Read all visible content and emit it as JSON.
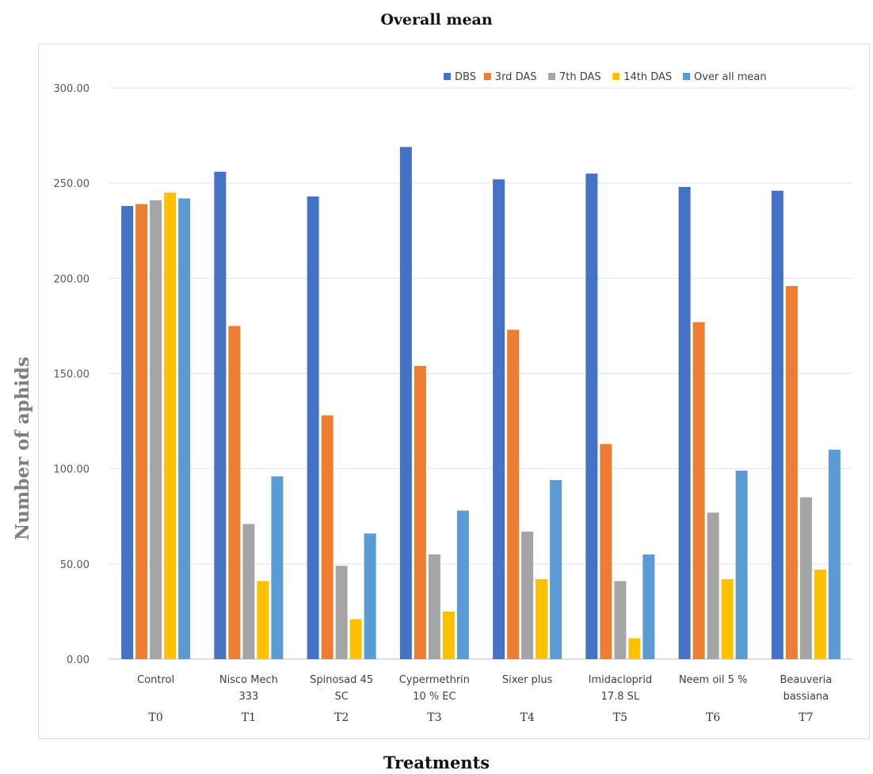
{
  "title": "Overall mean",
  "xlabel": "Treatments",
  "ylabel": "Number of aphids",
  "colors": {
    "DBS": "#4472C4",
    "3rd DAS": "#ED7D31",
    "7th DAS": "#A5A5A5",
    "14th DAS": "#FFC000",
    "Over all mean": "#5B9BD5"
  },
  "chart_data": {
    "type": "bar",
    "title": "Overall mean",
    "xlabel": "Treatments",
    "ylabel": "Number of aphids",
    "ylim": [
      0,
      300
    ],
    "yticks": [
      "0.00",
      "50.00",
      "100.00",
      "150.00",
      "200.00",
      "250.00",
      "300.00"
    ],
    "ytick_values": [
      0,
      50,
      100,
      150,
      200,
      250,
      300
    ],
    "grid": true,
    "legend": "top-right",
    "categories": [
      {
        "name": [
          "Control"
        ],
        "code": "T0"
      },
      {
        "name": [
          "Nisco Mech",
          "333"
        ],
        "code": "T1"
      },
      {
        "name": [
          "Spinosad 45",
          "SC"
        ],
        "code": "T2"
      },
      {
        "name": [
          "Cypermethrin",
          "10 % EC"
        ],
        "code": "T3"
      },
      {
        "name": [
          "Sixer plus"
        ],
        "code": "T4"
      },
      {
        "name": [
          "Imidacloprid",
          "17.8 SL"
        ],
        "code": "T5"
      },
      {
        "name": [
          "Neem oil 5 %"
        ],
        "code": "T6"
      },
      {
        "name": [
          "Beauveria",
          "bassiana"
        ],
        "code": "T7"
      }
    ],
    "series": [
      {
        "name": "DBS",
        "color": "#4472C4",
        "values": [
          238,
          256,
          243,
          269,
          252,
          255,
          248,
          246
        ]
      },
      {
        "name": "3rd DAS",
        "color": "#ED7D31",
        "values": [
          239,
          175,
          128,
          154,
          173,
          113,
          177,
          196
        ]
      },
      {
        "name": "7th DAS",
        "color": "#A5A5A5",
        "values": [
          241,
          71,
          49,
          55,
          67,
          41,
          77,
          85
        ]
      },
      {
        "name": "14th DAS",
        "color": "#FFC000",
        "values": [
          245,
          41,
          21,
          25,
          42,
          11,
          42,
          47
        ]
      },
      {
        "name": "Over all mean",
        "color": "#5B9BD5",
        "values": [
          242,
          96,
          66,
          78,
          94,
          55,
          99,
          110
        ]
      }
    ]
  }
}
